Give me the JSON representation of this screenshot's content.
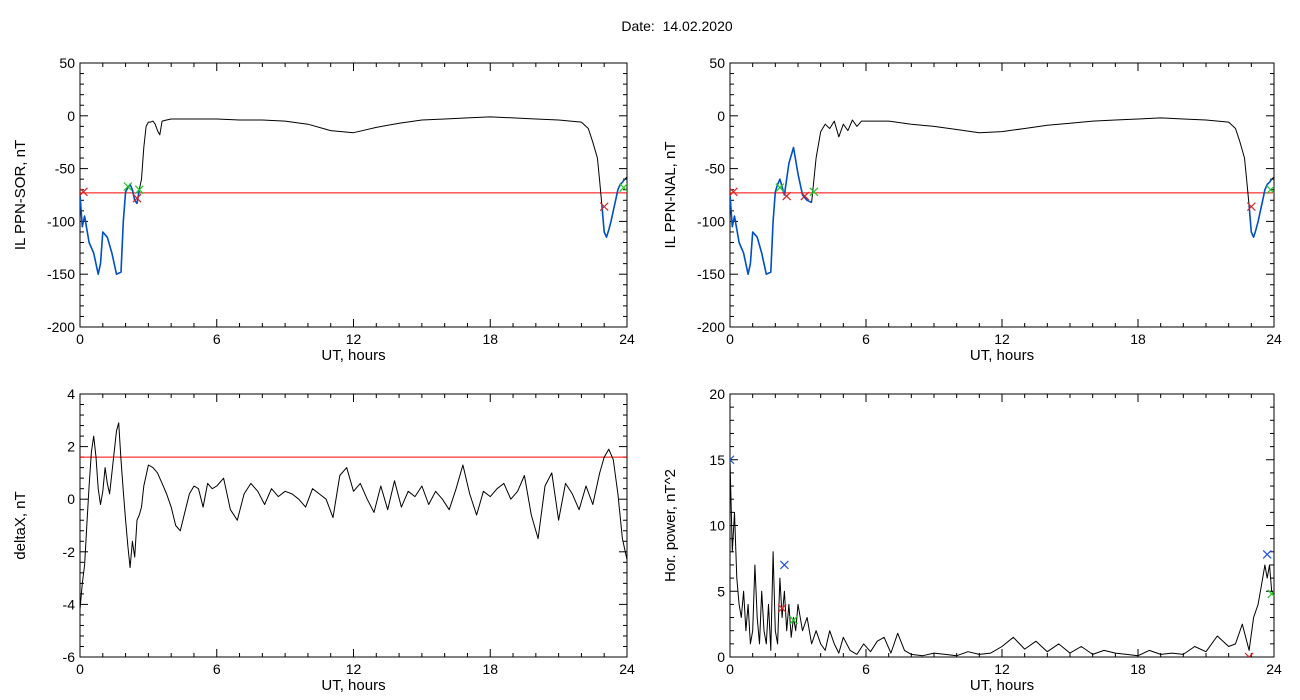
{
  "header": {
    "date_label": "Date:",
    "date_value": "14.02.2020"
  },
  "colors": {
    "trace": "#000000",
    "threshold": "#ff0000",
    "segment": "#0050c8",
    "marker_red": "#dc1e1e",
    "marker_green": "#1ec81e",
    "marker_blue": "#1e50dc"
  },
  "chart_data": [
    {
      "type": "line",
      "title": "",
      "xlabel": "UT, hours",
      "ylabel": "IL PPN-SOR, nT",
      "xlim": [
        0,
        24
      ],
      "ylim": [
        -200,
        50
      ],
      "xticks": [
        "0",
        "6",
        "12",
        "18",
        "24"
      ],
      "yticks": [
        "-200",
        "-150",
        "-100",
        "-50",
        "0",
        "50"
      ],
      "threshold": -73,
      "series": [
        {
          "style": "trace",
          "x": [
            0,
            0.1,
            0.2,
            0.4,
            0.6,
            0.8,
            0.9,
            1.0,
            1.2,
            1.4,
            1.6,
            1.8,
            1.9,
            2.0,
            2.1,
            2.2,
            2.3,
            2.4,
            2.5,
            2.6,
            2.7,
            2.8,
            2.9,
            3.0,
            3.1,
            3.2,
            3.3,
            3.4,
            3.5,
            3.6,
            3.8,
            4.0,
            5,
            6,
            7,
            8,
            9,
            10,
            11,
            12,
            13,
            14,
            15,
            16,
            17,
            18,
            19,
            20,
            21,
            22,
            22.3,
            22.5,
            22.7,
            22.8,
            22.9,
            23.0,
            23.1,
            23.2,
            23.3,
            23.4,
            23.5,
            23.6,
            23.7,
            23.8,
            23.9,
            24
          ],
          "y": [
            -75,
            -105,
            -95,
            -120,
            -130,
            -150,
            -140,
            -110,
            -115,
            -130,
            -150,
            -148,
            -100,
            -72,
            -68,
            -65,
            -70,
            -80,
            -83,
            -70,
            -60,
            -30,
            -10,
            -6,
            -6,
            -5,
            -8,
            -14,
            -18,
            -5,
            -4,
            -3,
            -3,
            -3,
            -4,
            -4,
            -5,
            -8,
            -14,
            -16,
            -11,
            -7,
            -4,
            -3,
            -2,
            -1,
            -2,
            -3,
            -4,
            -6,
            -12,
            -25,
            -40,
            -62,
            -85,
            -110,
            -115,
            -108,
            -100,
            -90,
            -80,
            -70,
            -65,
            -63,
            -60,
            -58
          ]
        },
        {
          "style": "segment",
          "x": [
            0,
            0.1,
            0.2,
            0.4,
            0.6,
            0.8,
            0.9,
            1.0,
            1.2,
            1.4,
            1.6,
            1.8,
            1.9,
            2.0,
            2.1,
            2.2,
            2.3,
            2.4,
            2.5,
            2.6
          ],
          "y": [
            -75,
            -105,
            -95,
            -120,
            -130,
            -150,
            -140,
            -110,
            -115,
            -130,
            -150,
            -148,
            -100,
            -72,
            -68,
            -65,
            -70,
            -80,
            -83,
            -70
          ]
        },
        {
          "style": "segment",
          "x": [
            22.9,
            23.0,
            23.1,
            23.2,
            23.3,
            23.4,
            23.5,
            23.6,
            23.7,
            23.8,
            23.9
          ],
          "y": [
            -85,
            -110,
            -115,
            -108,
            -100,
            -90,
            -80,
            -70,
            -65,
            -63,
            -60
          ]
        }
      ],
      "markers": [
        {
          "color": "red",
          "x": 0.15,
          "y": -72
        },
        {
          "color": "red",
          "x": 2.5,
          "y": -78
        },
        {
          "color": "red",
          "x": 23.0,
          "y": -86
        },
        {
          "color": "green",
          "x": 2.1,
          "y": -67
        },
        {
          "color": "green",
          "x": 2.6,
          "y": -70
        },
        {
          "color": "green",
          "x": 23.85,
          "y": -68
        }
      ]
    },
    {
      "type": "line",
      "title": "",
      "xlabel": "UT, hours",
      "ylabel": "IL PPN-NAL, nT",
      "xlim": [
        0,
        24
      ],
      "ylim": [
        -200,
        50
      ],
      "xticks": [
        "0",
        "6",
        "12",
        "18",
        "24"
      ],
      "yticks": [
        "-200",
        "-150",
        "-100",
        "-50",
        "0",
        "50"
      ],
      "threshold": -73,
      "series": [
        {
          "style": "trace",
          "x": [
            0,
            0.1,
            0.2,
            0.4,
            0.6,
            0.8,
            0.9,
            1.0,
            1.2,
            1.4,
            1.6,
            1.8,
            1.9,
            2.0,
            2.1,
            2.2,
            2.4,
            2.6,
            2.8,
            3.0,
            3.2,
            3.4,
            3.6,
            3.8,
            4.0,
            4.2,
            4.4,
            4.6,
            4.8,
            5.0,
            5.2,
            5.4,
            5.6,
            5.8,
            6,
            7,
            8,
            9,
            10,
            11,
            12,
            13,
            14,
            15,
            16,
            17,
            18,
            19,
            20,
            21,
            22,
            22.3,
            22.5,
            22.7,
            22.8,
            22.9,
            23.0,
            23.1,
            23.2,
            23.3,
            23.4,
            23.5,
            23.6,
            23.7,
            23.8,
            23.9,
            24
          ],
          "y": [
            -75,
            -105,
            -95,
            -120,
            -130,
            -150,
            -140,
            -110,
            -115,
            -130,
            -150,
            -148,
            -100,
            -72,
            -65,
            -60,
            -75,
            -45,
            -30,
            -55,
            -75,
            -80,
            -82,
            -40,
            -15,
            -8,
            -12,
            -5,
            -20,
            -8,
            -14,
            -4,
            -10,
            -5,
            -5,
            -5,
            -8,
            -10,
            -13,
            -16,
            -15,
            -12,
            -9,
            -7,
            -5,
            -4,
            -3,
            -2,
            -3,
            -4,
            -6,
            -12,
            -25,
            -40,
            -62,
            -85,
            -110,
            -115,
            -108,
            -100,
            -90,
            -80,
            -70,
            -65,
            -63,
            -60,
            -58
          ]
        },
        {
          "style": "segment",
          "x": [
            0,
            0.1,
            0.2,
            0.4,
            0.6,
            0.8,
            0.9,
            1.0,
            1.2,
            1.4,
            1.6,
            1.8,
            1.9,
            2.0,
            2.1,
            2.2,
            2.4,
            2.6,
            2.8,
            3.0,
            3.2,
            3.4,
            3.6
          ],
          "y": [
            -75,
            -105,
            -95,
            -120,
            -130,
            -150,
            -140,
            -110,
            -115,
            -130,
            -150,
            -148,
            -100,
            -72,
            -65,
            -60,
            -75,
            -45,
            -30,
            -55,
            -75,
            -80,
            -82
          ]
        },
        {
          "style": "segment",
          "x": [
            22.9,
            23.0,
            23.1,
            23.2,
            23.3,
            23.4,
            23.5,
            23.6,
            23.7,
            23.8,
            23.9
          ],
          "y": [
            -85,
            -110,
            -115,
            -108,
            -100,
            -90,
            -80,
            -70,
            -65,
            -63,
            -60
          ]
        }
      ],
      "markers": [
        {
          "color": "red",
          "x": 0.15,
          "y": -72
        },
        {
          "color": "red",
          "x": 2.5,
          "y": -76
        },
        {
          "color": "red",
          "x": 3.3,
          "y": -76
        },
        {
          "color": "red",
          "x": 23.0,
          "y": -86
        },
        {
          "color": "green",
          "x": 2.2,
          "y": -68
        },
        {
          "color": "green",
          "x": 3.7,
          "y": -72
        },
        {
          "color": "green",
          "x": 23.85,
          "y": -70
        }
      ]
    },
    {
      "type": "line",
      "title": "",
      "xlabel": "UT, hours",
      "ylabel": "deltaX, nT",
      "xlim": [
        0,
        24
      ],
      "ylim": [
        -6,
        4
      ],
      "xticks": [
        "0",
        "6",
        "12",
        "18",
        "24"
      ],
      "yticks": [
        "-6",
        "-4",
        "-2",
        "0",
        "2",
        "4"
      ],
      "threshold": 1.6,
      "series": [
        {
          "style": "trace",
          "x": [
            0,
            0.1,
            0.2,
            0.3,
            0.4,
            0.5,
            0.6,
            0.7,
            0.8,
            0.9,
            1.0,
            1.1,
            1.2,
            1.3,
            1.4,
            1.5,
            1.6,
            1.7,
            1.8,
            1.9,
            2.0,
            2.1,
            2.2,
            2.3,
            2.4,
            2.5,
            2.6,
            2.7,
            2.8,
            2.9,
            3.0,
            3.2,
            3.4,
            3.6,
            3.8,
            4.0,
            4.2,
            4.4,
            4.6,
            4.8,
            5.0,
            5.2,
            5.4,
            5.6,
            5.8,
            6.0,
            6.3,
            6.6,
            6.9,
            7.2,
            7.5,
            7.8,
            8.1,
            8.4,
            8.7,
            9.0,
            9.3,
            9.6,
            9.9,
            10.2,
            10.5,
            10.8,
            11.1,
            11.4,
            11.7,
            12.0,
            12.3,
            12.6,
            12.9,
            13.2,
            13.5,
            13.8,
            14.1,
            14.4,
            14.7,
            15.0,
            15.3,
            15.6,
            15.9,
            16.2,
            16.5,
            16.8,
            17.1,
            17.4,
            17.7,
            18.0,
            18.3,
            18.6,
            18.9,
            19.2,
            19.5,
            19.8,
            20.1,
            20.4,
            20.7,
            21.0,
            21.3,
            21.6,
            21.9,
            22.2,
            22.5,
            22.8,
            23.0,
            23.2,
            23.4,
            23.6,
            23.8,
            24
          ],
          "y": [
            -4.2,
            -3.2,
            -2.5,
            -1,
            0.5,
            1.8,
            2.4,
            1.6,
            0.4,
            -0.2,
            0.3,
            1.2,
            0.6,
            0.2,
            1.0,
            1.8,
            2.6,
            2.9,
            1.5,
            0.3,
            -0.8,
            -1.8,
            -2.6,
            -1.6,
            -2.2,
            -0.8,
            -0.6,
            -0.3,
            0.5,
            0.9,
            1.3,
            1.2,
            1.0,
            0.6,
            0.2,
            -0.3,
            -1.0,
            -1.2,
            -0.5,
            0.2,
            0.5,
            0.4,
            -0.3,
            0.6,
            0.4,
            0.5,
            0.8,
            -0.4,
            -0.8,
            0.2,
            0.6,
            0.3,
            -0.2,
            0.4,
            0.1,
            0.3,
            0.2,
            0.0,
            -0.3,
            0.4,
            0.2,
            0.0,
            -0.7,
            0.9,
            1.2,
            0.3,
            0.6,
            0.0,
            -0.5,
            0.5,
            -0.4,
            0.7,
            -0.3,
            0.3,
            0.1,
            0.5,
            -0.2,
            0.3,
            0.0,
            -0.4,
            0.4,
            1.3,
            0.2,
            -0.6,
            0.3,
            0.1,
            0.4,
            0.6,
            0.0,
            0.3,
            0.9,
            -0.6,
            -1.5,
            0.5,
            1.0,
            -0.8,
            0.6,
            0.2,
            -0.4,
            0.5,
            -0.2,
            1.0,
            1.6,
            1.9,
            1.5,
            0.2,
            -1.5,
            -2.3
          ]
        }
      ],
      "markers": []
    },
    {
      "type": "line",
      "title": "",
      "xlabel": "UT, hours",
      "ylabel": "Hor. power, nT^2",
      "xlim": [
        0,
        24
      ],
      "ylim": [
        0,
        20
      ],
      "xticks": [
        "0",
        "6",
        "12",
        "18",
        "24"
      ],
      "yticks": [
        "0",
        "5",
        "10",
        "15",
        "20"
      ],
      "series": [
        {
          "style": "trace",
          "x": [
            0,
            0.1,
            0.2,
            0.3,
            0.4,
            0.5,
            0.6,
            0.7,
            0.8,
            0.9,
            1.0,
            1.1,
            1.2,
            1.3,
            1.4,
            1.5,
            1.6,
            1.7,
            1.8,
            1.9,
            2.0,
            2.1,
            2.2,
            2.3,
            2.4,
            2.5,
            2.6,
            2.7,
            2.8,
            2.9,
            3.0,
            3.2,
            3.4,
            3.6,
            3.8,
            4.0,
            4.2,
            4.4,
            4.6,
            4.8,
            5.0,
            5.3,
            5.6,
            5.9,
            6.2,
            6.5,
            6.8,
            7.1,
            7.4,
            7.7,
            8.0,
            8.5,
            9,
            9.5,
            10,
            10.5,
            11,
            11.5,
            12,
            12.5,
            13,
            13.5,
            14,
            14.5,
            15,
            15.5,
            16,
            16.5,
            17,
            17.5,
            18,
            18.5,
            19,
            19.5,
            20,
            20.5,
            21,
            21.5,
            22,
            22.3,
            22.6,
            22.9,
            23.1,
            23.3,
            23.5,
            23.6,
            23.7,
            23.8,
            23.9,
            24
          ],
          "y": [
            15,
            8,
            11,
            6,
            4,
            3,
            5,
            2,
            4,
            1,
            2,
            7,
            3,
            1,
            5,
            2,
            1,
            4,
            0.5,
            8,
            2,
            1,
            6,
            3,
            5,
            2,
            4,
            1.5,
            3,
            2,
            4,
            2,
            3,
            1,
            2,
            1,
            0.5,
            2,
            1,
            0.3,
            1.5,
            0.5,
            0.2,
            1.0,
            0.4,
            1.2,
            1.5,
            0.3,
            1.8,
            0.5,
            0.2,
            0.1,
            0.3,
            0.2,
            0.1,
            0.4,
            0.2,
            0.3,
            0.8,
            1.5,
            0.6,
            1.2,
            0.4,
            1.0,
            0.3,
            0.8,
            0.2,
            0.5,
            0.3,
            0.2,
            0.1,
            0.5,
            0.2,
            0.3,
            0.2,
            0.8,
            0.4,
            1.6,
            0.8,
            1.0,
            2.5,
            0.5,
            3,
            4,
            6,
            7,
            6,
            7,
            5,
            4.8
          ]
        }
      ],
      "markers": [
        {
          "color": "blue",
          "x": 0,
          "y": 15
        },
        {
          "color": "blue",
          "x": 2.4,
          "y": 7
        },
        {
          "color": "blue",
          "x": 23.7,
          "y": 7.8
        },
        {
          "color": "red",
          "x": 2.3,
          "y": 3.7
        },
        {
          "color": "red",
          "x": 22.9,
          "y": 0
        },
        {
          "color": "green",
          "x": 2.8,
          "y": 2.8
        },
        {
          "color": "green",
          "x": 23.9,
          "y": 4.8
        }
      ]
    }
  ]
}
